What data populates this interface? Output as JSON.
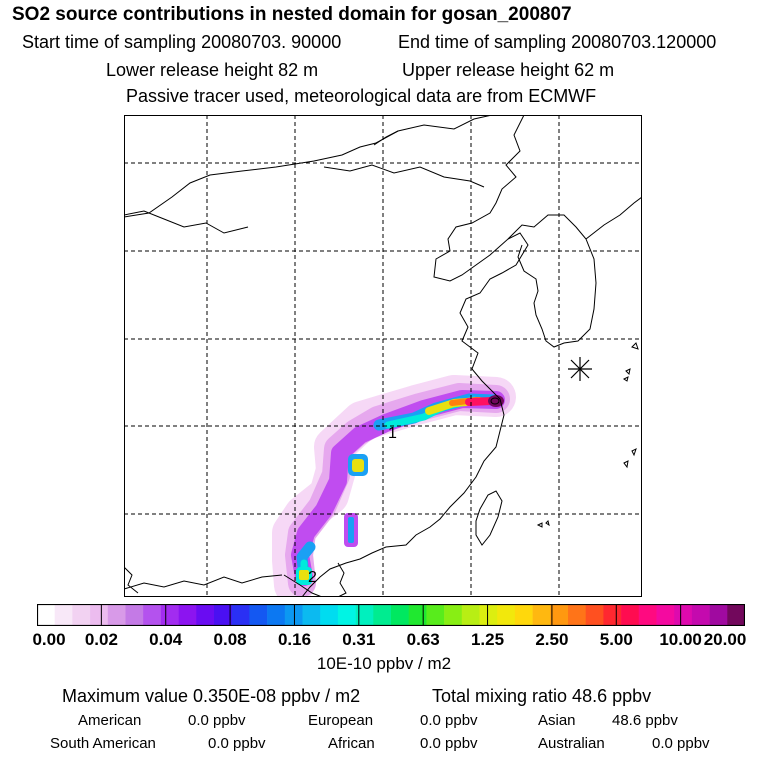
{
  "header": {
    "title": "SO2 source contributions in nested domain for gosan_200807",
    "start_label": "Start time of sampling 20080703. 90000",
    "end_label": "End time of sampling 20080703.120000",
    "lower_label": "Lower release height   82 m",
    "upper_label": "Upper release height   62 m",
    "tracer_note": "Passive tracer used, meteorological data are from ECMWF"
  },
  "map": {
    "receptor_marker": "asterisk-icon",
    "source_labels": [
      "1",
      "2"
    ]
  },
  "colorbar": {
    "ticks": [
      "0.00",
      "0.02",
      "0.04",
      "0.08",
      "0.16",
      "0.31",
      "0.63",
      "1.25",
      "2.50",
      "5.00",
      "10.00",
      "20.00"
    ],
    "colors": [
      "#ffffff",
      "#f8e8f8",
      "#f2d2f2",
      "#ecbcef",
      "#d89ae8",
      "#c47ae6",
      "#b452ee",
      "#a22cf0",
      "#8c14f0",
      "#6a0cf2",
      "#4a10f2",
      "#2a30f4",
      "#1458f2",
      "#0c78f2",
      "#0c98f2",
      "#0cbaf0",
      "#00dcf0",
      "#00f4e4",
      "#00f0be",
      "#00ec90",
      "#00e860",
      "#20e830",
      "#58ec1c",
      "#88ee14",
      "#b8ee14",
      "#dcee10",
      "#f2e80c",
      "#ffd80c",
      "#ffb810",
      "#ff9810",
      "#ff7418",
      "#ff5020",
      "#ff2830",
      "#ff0c50",
      "#ff0a80",
      "#f40aa0",
      "#de0aae",
      "#c40aae",
      "#a00aa0",
      "#72085c"
    ],
    "unit_label": "10E-10 ppbv / m2"
  },
  "summary": {
    "max_value_label": "Maximum value  0.350E-08 ppbv / m2",
    "total_label": "Total mixing ratio       48.6 ppbv",
    "regions": [
      {
        "name": "American",
        "value": "0.0 ppbv"
      },
      {
        "name": "European",
        "value": "0.0 ppbv"
      },
      {
        "name": "Asian",
        "value": "48.6 ppbv"
      },
      {
        "name": "South American",
        "value": "0.0 ppbv"
      },
      {
        "name": "African",
        "value": "0.0 ppbv"
      },
      {
        "name": "Australian",
        "value": "0.0 ppbv"
      }
    ]
  }
}
